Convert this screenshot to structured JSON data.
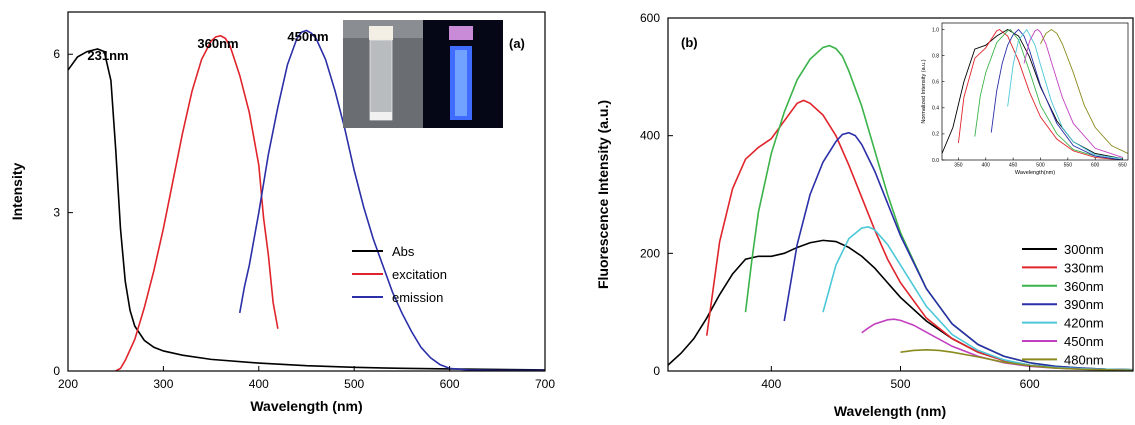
{
  "chart_data": [
    {
      "id": "a",
      "type": "line",
      "panel_label": "(a)",
      "xlabel": "Wavelength (nm)",
      "ylabel": "Intensity",
      "xlim": [
        200,
        700
      ],
      "ylim": [
        0,
        6.8
      ],
      "xticks": [
        200,
        300,
        400,
        500,
        600,
        700
      ],
      "yticks": [
        0,
        3,
        6
      ],
      "legend_position": "right",
      "annotations": [
        {
          "text": "231nm",
          "x": 231,
          "y": 6.1
        },
        {
          "text": "360nm",
          "x": 360,
          "y": 6.35
        },
        {
          "text": "450nm",
          "x": 450,
          "y": 6.45
        }
      ],
      "inset": {
        "type": "photo",
        "content": "two cuvettes: daylight and blue fluorescence under UV"
      },
      "series": [
        {
          "name": "Abs",
          "color": "#000000",
          "x": [
            200,
            210,
            220,
            231,
            238,
            245,
            250,
            255,
            260,
            265,
            270,
            280,
            290,
            300,
            320,
            350,
            400,
            450,
            500,
            550,
            600,
            650,
            700
          ],
          "y": [
            5.7,
            5.95,
            6.05,
            6.1,
            6.05,
            5.5,
            4.2,
            2.7,
            1.7,
            1.15,
            0.85,
            0.58,
            0.45,
            0.38,
            0.3,
            0.22,
            0.15,
            0.1,
            0.07,
            0.05,
            0.04,
            0.03,
            0.02
          ]
        },
        {
          "name": "excitation",
          "color": "#e0242b",
          "x": [
            250,
            255,
            260,
            270,
            280,
            290,
            300,
            310,
            320,
            330,
            340,
            350,
            355,
            360,
            365,
            370,
            380,
            390,
            400,
            405,
            410,
            415,
            420
          ],
          "y": [
            0,
            0.05,
            0.2,
            0.6,
            1.2,
            1.9,
            2.7,
            3.6,
            4.5,
            5.3,
            5.9,
            6.25,
            6.33,
            6.35,
            6.3,
            6.15,
            5.6,
            4.9,
            3.9,
            2.9,
            2.2,
            1.3,
            0.8
          ]
        },
        {
          "name": "emission",
          "color": "#2b2fa8",
          "x": [
            380,
            385,
            390,
            400,
            410,
            420,
            430,
            440,
            445,
            450,
            455,
            460,
            470,
            480,
            490,
            500,
            510,
            520,
            530,
            540,
            550,
            560,
            570,
            580,
            590,
            600,
            620,
            650,
            700
          ],
          "y": [
            1.1,
            1.6,
            2.0,
            3.0,
            4.1,
            5.0,
            5.8,
            6.3,
            6.42,
            6.45,
            6.4,
            6.3,
            5.9,
            5.3,
            4.6,
            3.8,
            3.1,
            2.5,
            2.0,
            1.5,
            1.1,
            0.75,
            0.45,
            0.25,
            0.12,
            0.05,
            0.02,
            0.01,
            0.01
          ]
        }
      ]
    },
    {
      "id": "b",
      "type": "line",
      "panel_label": "(b)",
      "xlabel": "Wavelength (nm)",
      "ylabel": "Fluorescence Intensity (a.u.)",
      "xlim": [
        320,
        680
      ],
      "ylim": [
        0,
        600
      ],
      "xticks": [
        400,
        500,
        600
      ],
      "yticks": [
        0,
        200,
        400,
        600
      ],
      "legend_position": "right",
      "series": [
        {
          "name": "300nm",
          "color": "#000000",
          "x": [
            320,
            330,
            340,
            350,
            360,
            370,
            380,
            390,
            400,
            410,
            420,
            430,
            440,
            450,
            460,
            470,
            480,
            490,
            500,
            520,
            540,
            560,
            580,
            600,
            620,
            640,
            660,
            680
          ],
          "y": [
            10,
            30,
            55,
            90,
            130,
            165,
            190,
            195,
            195,
            200,
            210,
            218,
            222,
            220,
            210,
            195,
            175,
            150,
            125,
            85,
            55,
            32,
            18,
            10,
            6,
            4,
            3,
            2
          ]
        },
        {
          "name": "330nm",
          "color": "#e0242b",
          "x": [
            350,
            355,
            360,
            370,
            380,
            390,
            400,
            410,
            420,
            425,
            430,
            440,
            450,
            460,
            470,
            480,
            490,
            500,
            520,
            540,
            560,
            580,
            600,
            620,
            640,
            660,
            680
          ],
          "y": [
            60,
            140,
            220,
            310,
            360,
            380,
            395,
            425,
            455,
            460,
            455,
            435,
            400,
            350,
            295,
            240,
            190,
            150,
            90,
            55,
            32,
            18,
            10,
            6,
            4,
            3,
            2
          ]
        },
        {
          "name": "360nm",
          "color": "#3bb34a",
          "x": [
            380,
            385,
            390,
            400,
            410,
            420,
            430,
            440,
            445,
            450,
            455,
            460,
            470,
            480,
            490,
            500,
            520,
            540,
            560,
            580,
            600,
            620,
            640,
            660,
            680
          ],
          "y": [
            100,
            190,
            270,
            370,
            440,
            495,
            530,
            550,
            553,
            548,
            535,
            510,
            450,
            375,
            300,
            235,
            140,
            80,
            45,
            25,
            14,
            8,
            5,
            3,
            2
          ]
        },
        {
          "name": "390nm",
          "color": "#2b2fa8",
          "x": [
            410,
            415,
            420,
            430,
            440,
            450,
            455,
            460,
            465,
            470,
            480,
            490,
            500,
            520,
            540,
            560,
            580,
            600,
            620,
            640,
            660,
            680
          ],
          "y": [
            85,
            150,
            215,
            300,
            355,
            390,
            402,
            405,
            400,
            385,
            340,
            285,
            230,
            140,
            80,
            45,
            25,
            14,
            8,
            5,
            3,
            2
          ]
        },
        {
          "name": "420nm",
          "color": "#4cc8d8",
          "x": [
            440,
            445,
            450,
            460,
            470,
            475,
            480,
            490,
            500,
            510,
            520,
            540,
            560,
            580,
            600,
            620,
            640,
            660,
            680
          ],
          "y": [
            100,
            140,
            180,
            225,
            243,
            245,
            240,
            215,
            180,
            145,
            110,
            62,
            35,
            19,
            10,
            6,
            4,
            3,
            2
          ]
        },
        {
          "name": "450nm",
          "color": "#c240c0",
          "x": [
            470,
            475,
            480,
            490,
            495,
            500,
            510,
            520,
            540,
            560,
            580,
            600,
            620,
            640,
            660,
            680
          ],
          "y": [
            65,
            73,
            80,
            87,
            88,
            86,
            78,
            66,
            42,
            25,
            14,
            8,
            5,
            3,
            2,
            1
          ]
        },
        {
          "name": "480nm",
          "color": "#8a8a1e",
          "x": [
            500,
            510,
            520,
            530,
            540,
            560,
            580,
            600,
            620,
            640,
            660,
            680
          ],
          "y": [
            32,
            35,
            36,
            35,
            32,
            24,
            15,
            9,
            5,
            3,
            2,
            1
          ]
        }
      ],
      "inset": {
        "type": "line",
        "xlabel": "Wavelength(nm)",
        "ylabel": "Normalized Intensity (a.u.)",
        "xlim": [
          320,
          660
        ],
        "ylim": [
          0,
          1.05
        ],
        "xticks": [
          350,
          400,
          450,
          500,
          550,
          600,
          650
        ],
        "yticks": [
          0.0,
          0.2,
          0.4,
          0.6,
          0.8,
          1.0
        ],
        "ytick_labels": [
          "0.0",
          "0.2",
          "0.4",
          "0.6",
          "0.8",
          "1.0"
        ],
        "series": [
          {
            "color": "#000000",
            "x": [
              320,
              340,
              360,
              380,
              400,
              420,
              440,
              460,
              480,
              500,
              530,
              560,
              600,
              650
            ],
            "y": [
              0.05,
              0.25,
              0.6,
              0.85,
              0.88,
              0.95,
              1.0,
              0.95,
              0.79,
              0.56,
              0.3,
              0.14,
              0.05,
              0.01
            ]
          },
          {
            "color": "#e0242b",
            "x": [
              350,
              360,
              380,
              400,
              420,
              425,
              440,
              460,
              480,
              500,
              530,
              560,
              600,
              650
            ],
            "y": [
              0.13,
              0.48,
              0.78,
              0.86,
              0.99,
              1.0,
              0.95,
              0.76,
              0.52,
              0.33,
              0.16,
              0.07,
              0.02,
              0.0
            ]
          },
          {
            "color": "#3bb34a",
            "x": [
              380,
              390,
              400,
              420,
              440,
              445,
              460,
              480,
              500,
              530,
              560,
              600,
              650
            ],
            "y": [
              0.18,
              0.49,
              0.67,
              0.9,
              0.99,
              1.0,
              0.92,
              0.68,
              0.42,
              0.2,
              0.08,
              0.03,
              0.0
            ]
          },
          {
            "color": "#2b2fa8",
            "x": [
              410,
              420,
              430,
              440,
              450,
              460,
              470,
              480,
              500,
              530,
              560,
              600,
              650
            ],
            "y": [
              0.21,
              0.53,
              0.74,
              0.88,
              0.96,
              1.0,
              0.95,
              0.84,
              0.57,
              0.28,
              0.11,
              0.03,
              0.0
            ]
          },
          {
            "color": "#4cc8d8",
            "x": [
              440,
              450,
              460,
              475,
              490,
              500,
              520,
              540,
              560,
              600,
              650
            ],
            "y": [
              0.41,
              0.73,
              0.92,
              1.0,
              0.88,
              0.73,
              0.45,
              0.25,
              0.14,
              0.04,
              0.01
            ]
          },
          {
            "color": "#c240c0",
            "x": [
              470,
              480,
              490,
              495,
              500,
              510,
              520,
              540,
              560,
              600,
              650
            ],
            "y": [
              0.74,
              0.91,
              0.99,
              1.0,
              0.98,
              0.89,
              0.75,
              0.48,
              0.28,
              0.09,
              0.02
            ]
          },
          {
            "color": "#8a8a1e",
            "x": [
              500,
              510,
              520,
              530,
              540,
              560,
              580,
              600,
              630,
              660
            ],
            "y": [
              0.89,
              0.97,
              1.0,
              0.97,
              0.89,
              0.67,
              0.42,
              0.25,
              0.11,
              0.05
            ]
          }
        ]
      }
    }
  ]
}
